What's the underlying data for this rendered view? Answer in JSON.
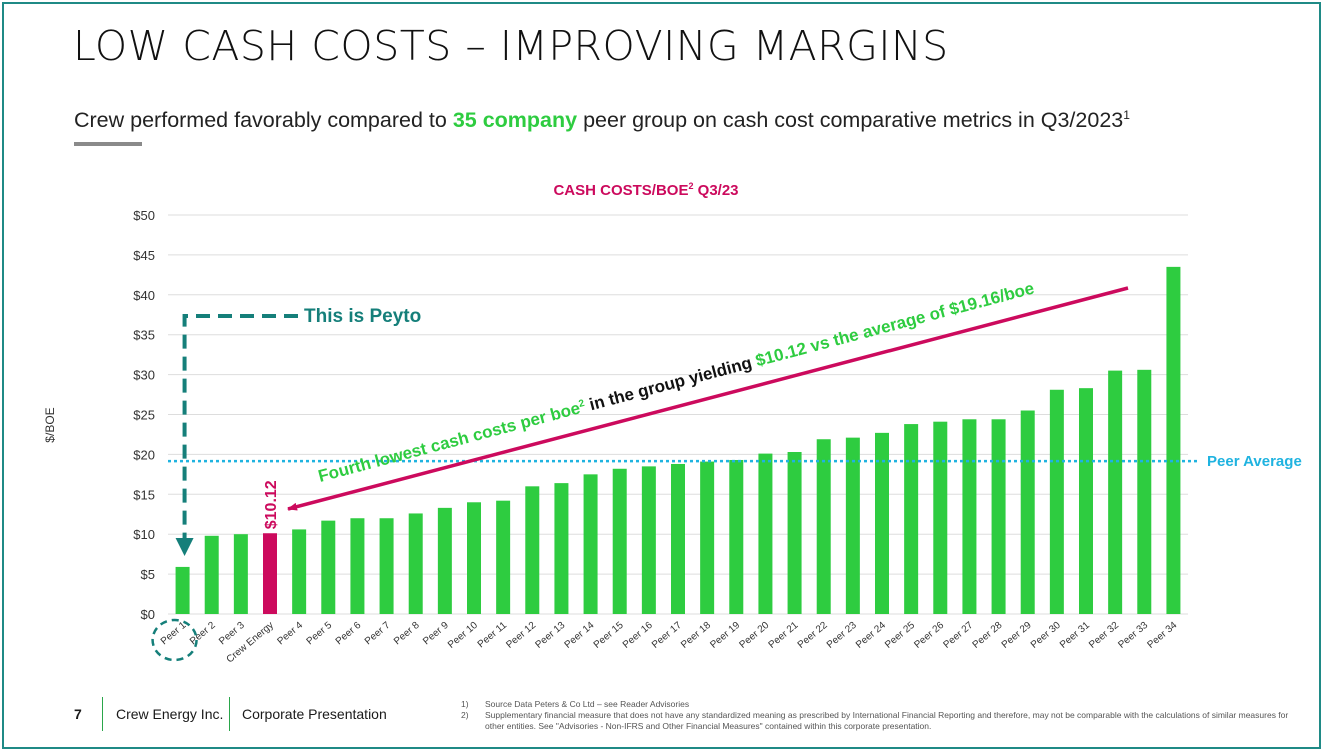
{
  "slide": {
    "title": "LOW CASH COSTS – IMPROVING MARGINS",
    "subtitle_before": "Crew performed favorably compared to ",
    "subtitle_highlight": "35 company",
    "subtitle_after": " peer group on cash cost comparative metrics in Q3/2023",
    "subtitle_sup": "1"
  },
  "colors": {
    "bar": "#2ecc40",
    "highlight_bar": "#cc0a5d",
    "peer_average": "#1fb3e0",
    "callout": "#157f7a",
    "accent_text": "#2ecc40",
    "frame": "#1f8a86"
  },
  "annotations": {
    "this_is_peyto": "This is Peyto",
    "crew_value_label": "$10.12",
    "peer_average_label": "Peer Average",
    "arrow_text_green_1": "Fourth lowest cash costs per boe",
    "arrow_text_sup": "2",
    "arrow_text_black": " in the group yielding ",
    "arrow_text_green_2": "$10.12 vs the average of $19.16/boe"
  },
  "chart_data": {
    "type": "bar",
    "title": "CASH COSTS/BOE",
    "title_sup": "2",
    "title_suffix": " Q3/23",
    "ylabel": "$/BOE",
    "ylim": [
      0,
      50
    ],
    "yticks": [
      "$0",
      "$5",
      "$10",
      "$15",
      "$20",
      "$25",
      "$30",
      "$35",
      "$40",
      "$45",
      "$50"
    ],
    "grid": true,
    "peer_average": 19.16,
    "highlight_category": "Crew Energy",
    "categories": [
      "Peer 1",
      "Peer 2",
      "Peer 3",
      "Crew Energy",
      "Peer 4",
      "Peer 5",
      "Peer 6",
      "Peer 7",
      "Peer 8",
      "Peer 9",
      "Peer 10",
      "Peer 11",
      "Peer 12",
      "Peer 13",
      "Peer 14",
      "Peer 15",
      "Peer 16",
      "Peer 17",
      "Peer 18",
      "Peer 19",
      "Peer 20",
      "Peer 21",
      "Peer 22",
      "Peer 23",
      "Peer 24",
      "Peer 25",
      "Peer 26",
      "Peer 27",
      "Peer 28",
      "Peer 29",
      "Peer 30",
      "Peer 31",
      "Peer 32",
      "Peer 33",
      "Peer 34"
    ],
    "values": [
      5.9,
      9.8,
      10.0,
      10.12,
      10.6,
      11.7,
      12.0,
      12.0,
      12.6,
      13.3,
      14.0,
      14.2,
      16.0,
      16.4,
      17.5,
      18.2,
      18.5,
      18.8,
      19.1,
      19.3,
      20.1,
      20.3,
      21.9,
      22.1,
      22.7,
      23.8,
      24.1,
      24.4,
      24.4,
      25.5,
      28.1,
      28.3,
      30.5,
      30.6,
      43.5
    ]
  },
  "footer": {
    "page_number": "7",
    "company": "Crew Energy Inc.",
    "presentation": "Corporate Presentation",
    "notes": [
      {
        "num": "1)",
        "text": "Source Data Peters & Co Ltd – see Reader Advisories"
      },
      {
        "num": "2)",
        "text": "Supplementary financial measure that does not have any standardized meaning as prescribed by International Financial Reporting  and therefore, may not be comparable with the calculations of similar measures for other entities. See \"Advisories - Non-IFRS and Other Financial Measures\" contained within this corporate presentation."
      }
    ]
  }
}
